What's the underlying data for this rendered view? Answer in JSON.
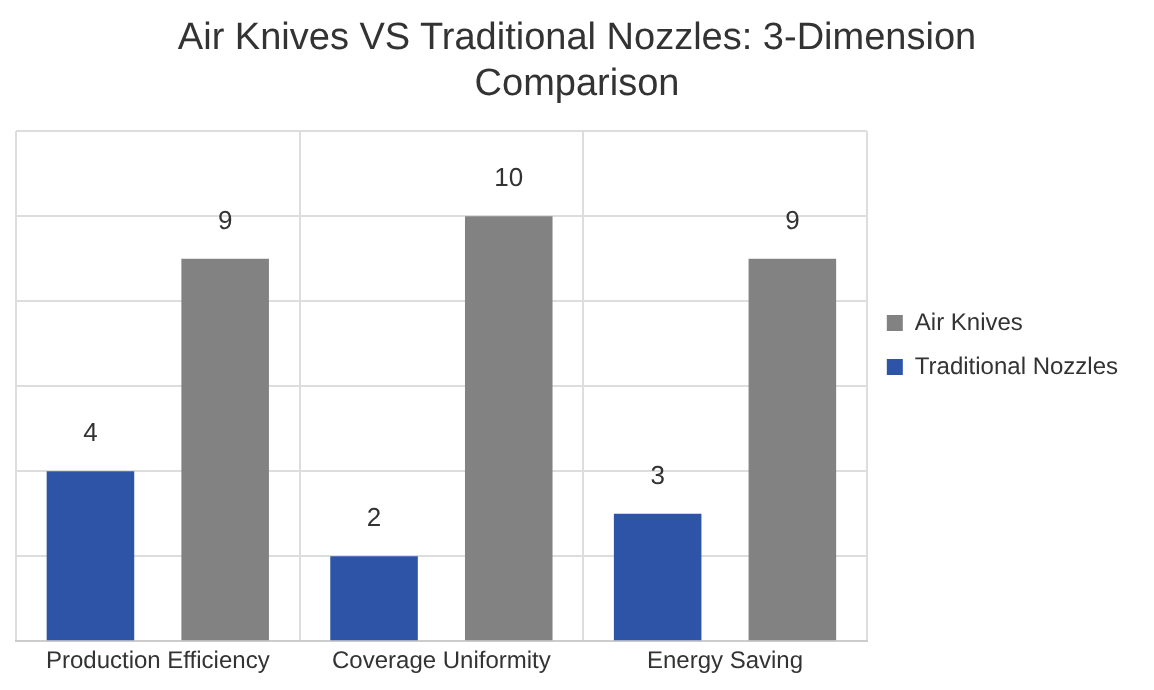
{
  "chart_data": {
    "type": "bar",
    "title": "Air Knives VS Traditional Nozzles: 3-Dimension Comparison",
    "categories": [
      "Production Efficiency",
      "Coverage Uniformity",
      "Energy Saving"
    ],
    "series": [
      {
        "name": "Traditional Nozzles",
        "color": "#2e54a8",
        "values": [
          4,
          2,
          3
        ]
      },
      {
        "name": "Air Knives",
        "color": "#828282",
        "values": [
          9,
          10,
          9
        ]
      }
    ],
    "ylim": [
      0,
      12
    ],
    "yticks": [
      {
        "value": 0,
        "label": null
      },
      {
        "value": 2,
        "label": null
      },
      {
        "value": 4,
        "label": null
      },
      {
        "value": 6,
        "label": null
      },
      {
        "value": 8,
        "label": null
      },
      {
        "value": 10,
        "label": null
      },
      {
        "value": 12,
        "label": null
      }
    ],
    "tick_labels": "x",
    "grid": true,
    "legend": "right",
    "data_labels": true
  }
}
